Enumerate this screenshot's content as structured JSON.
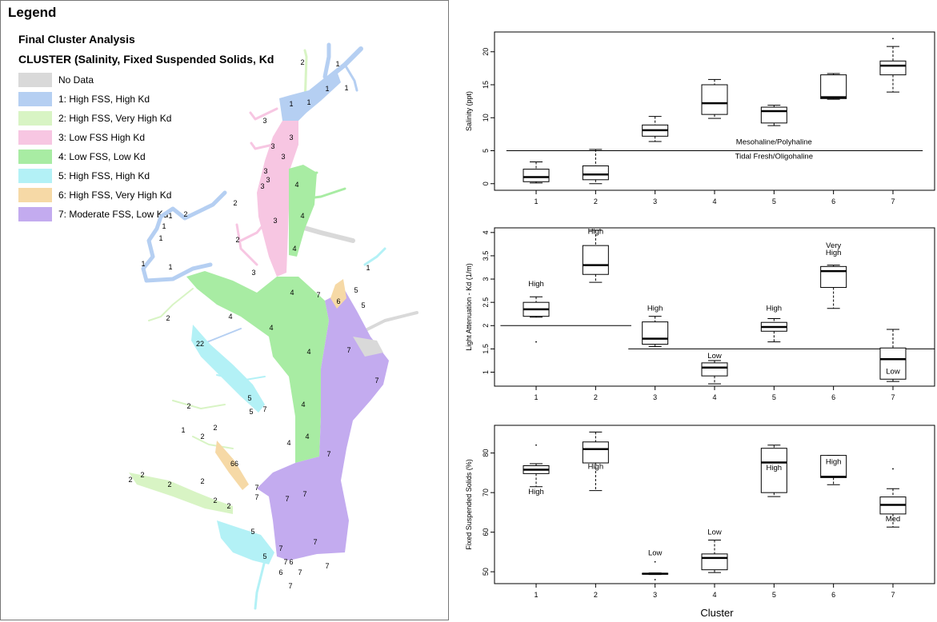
{
  "legend": {
    "title": "Legend",
    "subtitle": "Final Cluster Analysis",
    "field_title": "CLUSTER (Salinity, Fixed Suspended Solids, Kd",
    "items": [
      {
        "label": "No Data",
        "color": "#d9d9d9"
      },
      {
        "label": "1: High FSS, High Kd",
        "color": "#b5cff2"
      },
      {
        "label": "2: High FSS, Very High Kd",
        "color": "#d8f4c4"
      },
      {
        "label": "3: Low FSS High Kd",
        "color": "#f7c6e2"
      },
      {
        "label": "4: Low FSS, Low Kd",
        "color": "#a8eca3"
      },
      {
        "label": "5: High FSS, High Kd",
        "color": "#b3f1f6"
      },
      {
        "label": "6: High FSS, Very High Kd",
        "color": "#f6d9a6"
      },
      {
        "label": "7: Moderate FSS, Low Kd",
        "color": "#c3abef"
      }
    ]
  },
  "map_labels": {
    "cluster1": "1",
    "cluster2": "2",
    "cluster3": "3",
    "cluster4": "4",
    "cluster5": "5",
    "cluster6": "6",
    "cluster7": "7",
    "cluster6b": "66",
    "cluster2b": "22"
  },
  "xlabel_common": "Cluster",
  "chart_data": [
    {
      "type": "box",
      "ylabel": "Salinity (ppt)",
      "ylim": [
        -1,
        23
      ],
      "yticks": [
        0,
        5,
        10,
        15,
        20
      ],
      "categories": [
        "1",
        "2",
        "3",
        "4",
        "5",
        "6",
        "7"
      ],
      "boxes": [
        {
          "min": 0.1,
          "q1": 0.3,
          "median": 1.0,
          "q3": 2.2,
          "max": 3.3,
          "outliers": []
        },
        {
          "min": 0.0,
          "q1": 0.6,
          "median": 1.4,
          "q3": 2.7,
          "max": 5.2,
          "outliers": []
        },
        {
          "min": 6.4,
          "q1": 7.2,
          "median": 8.1,
          "q3": 8.9,
          "max": 10.2,
          "outliers": []
        },
        {
          "min": 9.9,
          "q1": 10.5,
          "median": 12.2,
          "q3": 15.0,
          "max": 15.8,
          "outliers": []
        },
        {
          "min": 8.8,
          "q1": 9.2,
          "median": 11.0,
          "q3": 11.6,
          "max": 11.9,
          "outliers": []
        },
        {
          "min": 12.8,
          "q1": 12.9,
          "median": 13.1,
          "q3": 16.5,
          "max": 16.7,
          "outliers": []
        },
        {
          "min": 13.9,
          "q1": 16.5,
          "median": 17.9,
          "q3": 18.6,
          "max": 20.8,
          "outliers": [
            22.0
          ]
        }
      ],
      "reference_lines": [
        {
          "y": 5,
          "x_from": 0.5,
          "x_to": 7.5
        }
      ],
      "annotations": [
        {
          "text": "Mesohaline/Polyhaline",
          "x": 5,
          "y": 6.0
        },
        {
          "text": "Tidal Fresh/Oligohaline",
          "x": 5,
          "y": 3.8
        }
      ]
    },
    {
      "type": "box",
      "ylabel": "Light Attenuation - Kd (1/m)",
      "ylim": [
        0.7,
        4.1
      ],
      "yticks": [
        1.0,
        1.5,
        2.0,
        2.5,
        3.0,
        3.5,
        4.0
      ],
      "categories": [
        "1",
        "2",
        "3",
        "4",
        "5",
        "6",
        "7"
      ],
      "boxes": [
        {
          "min": 2.18,
          "q1": 2.2,
          "median": 2.35,
          "q3": 2.5,
          "max": 2.62,
          "outliers": [
            1.65
          ]
        },
        {
          "min": 2.93,
          "q1": 3.1,
          "median": 3.3,
          "q3": 3.72,
          "max": 4.05,
          "outliers": []
        },
        {
          "min": 1.55,
          "q1": 1.6,
          "median": 1.72,
          "q3": 2.08,
          "max": 2.2,
          "outliers": []
        },
        {
          "min": 0.75,
          "q1": 0.92,
          "median": 1.1,
          "q3": 1.2,
          "max": 1.25,
          "outliers": []
        },
        {
          "min": 1.65,
          "q1": 1.88,
          "median": 1.97,
          "q3": 2.07,
          "max": 2.15,
          "outliers": []
        },
        {
          "min": 2.37,
          "q1": 2.82,
          "median": 3.17,
          "q3": 3.27,
          "max": 3.3,
          "outliers": []
        },
        {
          "min": 0.8,
          "q1": 0.85,
          "median": 1.28,
          "q3": 1.52,
          "max": 1.92,
          "outliers": []
        }
      ],
      "reference_lines": [
        {
          "y": 2.0,
          "x_from": 0.4,
          "x_to": 2.6
        },
        {
          "y": 1.5,
          "x_from": 2.55,
          "x_to": 7.7
        }
      ],
      "annotations": [
        {
          "text": "High",
          "x": 1,
          "y": 2.85
        },
        {
          "text": "High",
          "x": 2,
          "y": 3.97
        },
        {
          "text": "High",
          "x": 3,
          "y": 2.32
        },
        {
          "text": "Low",
          "x": 4,
          "y": 1.3
        },
        {
          "text": "High",
          "x": 5,
          "y": 2.32
        },
        {
          "text": "Very",
          "x": 6,
          "y": 3.67
        },
        {
          "text": "High",
          "x": 6,
          "y": 3.52
        },
        {
          "text": "Low",
          "x": 7,
          "y": 0.97
        }
      ]
    },
    {
      "type": "box",
      "ylabel": "Fixed Suspended Solids (%)",
      "ylim": [
        47,
        87
      ],
      "yticks": [
        50,
        60,
        70,
        80
      ],
      "categories": [
        "1",
        "2",
        "3",
        "4",
        "5",
        "6",
        "7"
      ],
      "boxes": [
        {
          "min": 71.5,
          "q1": 74.8,
          "median": 75.8,
          "q3": 76.8,
          "max": 77.3,
          "outliers": [
            82
          ]
        },
        {
          "min": 70.5,
          "q1": 77.5,
          "median": 81.0,
          "q3": 82.8,
          "max": 85.3,
          "outliers": []
        },
        {
          "min": 49.3,
          "q1": 49.4,
          "median": 49.5,
          "q3": 49.6,
          "max": 49.7,
          "outliers": [
            52.5,
            48.0
          ]
        },
        {
          "min": 49.8,
          "q1": 50.5,
          "median": 53.5,
          "q3": 54.5,
          "max": 58.0,
          "outliers": []
        },
        {
          "min": 69.0,
          "q1": 70.0,
          "median": 77.6,
          "q3": 81.2,
          "max": 82.0,
          "outliers": []
        },
        {
          "min": 72.0,
          "q1": 73.8,
          "median": 74.0,
          "q3": 79.4,
          "max": 79.4,
          "outliers": []
        },
        {
          "min": 61.3,
          "q1": 64.6,
          "median": 66.9,
          "q3": 68.9,
          "max": 71.0,
          "outliers": [
            76
          ]
        }
      ],
      "reference_lines": [],
      "annotations": [
        {
          "text": "High",
          "x": 1,
          "y": 69.6
        },
        {
          "text": "High",
          "x": 2,
          "y": 76.0
        },
        {
          "text": "Low",
          "x": 3,
          "y": 54.2
        },
        {
          "text": "Low",
          "x": 4,
          "y": 59.4
        },
        {
          "text": "High",
          "x": 5,
          "y": 75.7
        },
        {
          "text": "High",
          "x": 6,
          "y": 77.2
        },
        {
          "text": "Med",
          "x": 7,
          "y": 62.8
        }
      ]
    }
  ]
}
